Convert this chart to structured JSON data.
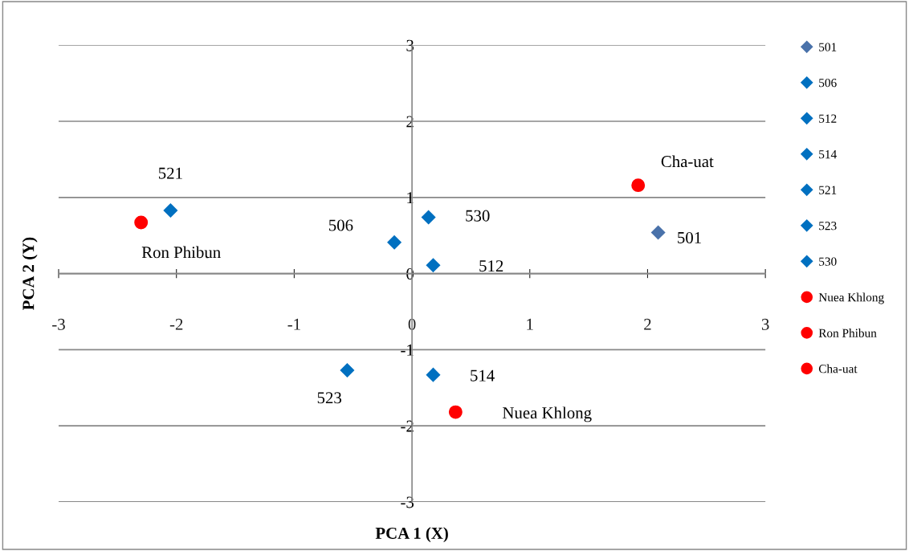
{
  "chart_data": {
    "type": "scatter",
    "xlabel": "PCA 1 (X)",
    "ylabel": "PCA 2 (Y)",
    "xlim": [
      -3,
      3
    ],
    "ylim": [
      -3,
      3
    ],
    "xticks": [
      -3,
      -2,
      -1,
      0,
      1,
      2,
      3
    ],
    "yticks": [
      -3,
      -2,
      -1,
      0,
      1,
      2,
      3
    ],
    "grid": "y",
    "legend": "right",
    "series": [
      {
        "name": "501",
        "color": "#4a72aa",
        "marker": "diamond",
        "x": [
          2.09
        ],
        "values": [
          0.54
        ]
      },
      {
        "name": "506",
        "color": "#0070c0",
        "marker": "diamond",
        "x": [
          -0.15
        ],
        "values": [
          0.41
        ]
      },
      {
        "name": "512",
        "color": "#0070c0",
        "marker": "diamond",
        "x": [
          0.18
        ],
        "values": [
          0.11
        ]
      },
      {
        "name": "514",
        "color": "#0070c0",
        "marker": "diamond",
        "x": [
          0.18
        ],
        "values": [
          -1.33
        ]
      },
      {
        "name": "521",
        "color": "#0070c0",
        "marker": "diamond",
        "x": [
          -2.05
        ],
        "values": [
          0.83
        ]
      },
      {
        "name": "523",
        "color": "#0070c0",
        "marker": "diamond",
        "x": [
          -0.55
        ],
        "values": [
          -1.27
        ]
      },
      {
        "name": "530",
        "color": "#0070c0",
        "marker": "diamond",
        "x": [
          0.14
        ],
        "values": [
          0.74
        ]
      },
      {
        "name": "Nuea Khlong",
        "color": "#ff0000",
        "marker": "circle",
        "x": [
          0.37
        ],
        "values": [
          -1.82
        ]
      },
      {
        "name": "Ron Phibun",
        "color": "#ff0000",
        "marker": "circle",
        "x": [
          -2.3
        ],
        "values": [
          0.67
        ]
      },
      {
        "name": "Cha-uat",
        "color": "#ff0000",
        "marker": "circle",
        "x": [
          1.92
        ],
        "values": [
          1.16
        ]
      }
    ],
    "annotations": [
      {
        "text": "501",
        "x": 2.09,
        "y": 0.54
      },
      {
        "text": "506",
        "x": -0.15,
        "y": 0.41
      },
      {
        "text": "512",
        "x": 0.18,
        "y": 0.11
      },
      {
        "text": "514",
        "x": 0.18,
        "y": -1.33
      },
      {
        "text": "521",
        "x": -2.05,
        "y": 0.83
      },
      {
        "text": "523",
        "x": -0.55,
        "y": -1.27
      },
      {
        "text": "530",
        "x": 0.14,
        "y": 0.74
      },
      {
        "text": "Nuea Khlong",
        "x": 0.37,
        "y": -1.82
      },
      {
        "text": "Ron Phibun",
        "x": -2.3,
        "y": 0.67
      },
      {
        "text": "Cha-uat",
        "x": 1.92,
        "y": 1.16
      }
    ]
  }
}
